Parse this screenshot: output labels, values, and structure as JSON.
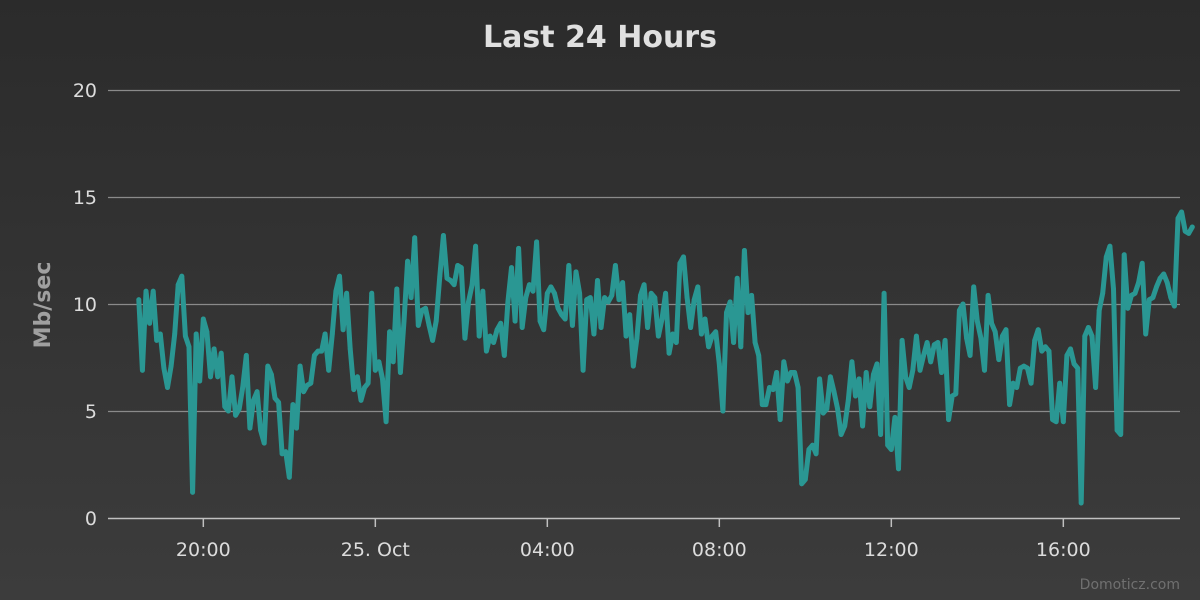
{
  "chart_data": {
    "type": "line",
    "title": "Last 24 Hours",
    "ylabel": "Mb/sec",
    "xlabel": "",
    "ylim": [
      0,
      20
    ],
    "y_ticks": [
      0,
      5,
      10,
      15,
      20
    ],
    "x_ticks": [
      "20:00",
      "25. Oct",
      "04:00",
      "08:00",
      "12:00",
      "16:00"
    ],
    "x_start": "24. Oct 18:30",
    "x_end": "25. Oct 18:25",
    "x_step_minutes": 5,
    "grid": true,
    "legend": "none",
    "series_color": "#2a9793",
    "series": [
      {
        "values": [
          10.2,
          6.9,
          10.6,
          9.1,
          10.6,
          8.3,
          8.6,
          7.0,
          6.1,
          7.1,
          8.6,
          10.9,
          11.3,
          8.5,
          8.0,
          1.2,
          8.6,
          6.4,
          9.3,
          8.7,
          6.6,
          7.9,
          6.6,
          7.7,
          5.2,
          5.0,
          6.6,
          4.8,
          5.1,
          6.1,
          7.6,
          4.2,
          5.5,
          5.9,
          4.1,
          3.5,
          7.1,
          6.7,
          5.6,
          5.4,
          3.0,
          3.1,
          1.9,
          5.3,
          4.2,
          7.1,
          5.9,
          6.2,
          6.3,
          7.6,
          7.8,
          7.8,
          8.6,
          6.9,
          8.6,
          10.6,
          11.3,
          8.8,
          10.5,
          7.9,
          6.0,
          6.6,
          5.5,
          6.1,
          6.3,
          10.5,
          6.9,
          7.3,
          6.5,
          4.5,
          8.7,
          7.3,
          10.7,
          6.8,
          9.2,
          12.0,
          10.3,
          13.1,
          9.0,
          9.7,
          9.8,
          9.0,
          8.3,
          9.2,
          11.3,
          13.2,
          11.2,
          11.1,
          10.9,
          11.8,
          11.7,
          8.4,
          10.1,
          10.9,
          12.7,
          8.5,
          10.6,
          7.8,
          8.5,
          8.2,
          8.8,
          9.1,
          7.6,
          10.1,
          11.7,
          9.2,
          12.6,
          8.9,
          10.3,
          10.9,
          10.6,
          12.9,
          9.2,
          8.8,
          10.5,
          10.8,
          10.5,
          9.8,
          9.5,
          9.3,
          11.8,
          9.0,
          11.5,
          10.5,
          6.9,
          10.2,
          10.3,
          8.6,
          11.1,
          8.9,
          10.3,
          10.1,
          10.4,
          11.8,
          10.2,
          11.0,
          8.5,
          9.5,
          7.1,
          8.4,
          10.4,
          10.9,
          8.9,
          10.5,
          10.3,
          8.5,
          9.3,
          10.5,
          7.7,
          8.6,
          8.2,
          11.9,
          12.2,
          10.3,
          8.9,
          10.2,
          10.8,
          8.6,
          9.3,
          8.0,
          8.5,
          8.7,
          7.2,
          5.0,
          9.6,
          10.1,
          8.2,
          11.2,
          8.0,
          12.5,
          9.6,
          10.4,
          8.2,
          7.6,
          5.3,
          5.3,
          6.1,
          6.0,
          6.8,
          4.6,
          7.3,
          6.4,
          6.8,
          6.8,
          6.1,
          1.6,
          1.8,
          3.2,
          3.4,
          3.0,
          6.5,
          4.9,
          5.1,
          6.6,
          5.9,
          5.1,
          3.9,
          4.3,
          5.5,
          7.3,
          5.7,
          6.5,
          4.3,
          6.8,
          5.2,
          6.7,
          7.2,
          3.9,
          10.5,
          3.4,
          3.2,
          4.7,
          2.3,
          8.3,
          6.6,
          6.1,
          6.9,
          8.5,
          6.9,
          7.6,
          8.2,
          7.3,
          8.1,
          8.2,
          6.8,
          8.3,
          4.6,
          5.7,
          5.8,
          9.7,
          10.0,
          8.4,
          7.6,
          10.8,
          9.2,
          8.4,
          6.9,
          10.4,
          9.1,
          8.7,
          7.4,
          8.5,
          8.8,
          5.3,
          6.3,
          6.1,
          7.0,
          7.1,
          7.0,
          6.3,
          8.3,
          8.8,
          7.8,
          8.0,
          7.8,
          4.6,
          4.5,
          6.3,
          4.5,
          7.6,
          7.9,
          7.2,
          7.0,
          0.7,
          8.5,
          8.9,
          8.5,
          6.1,
          9.7,
          10.5,
          12.2,
          12.7,
          10.7,
          4.1,
          3.9,
          12.3,
          9.8,
          10.4,
          10.5,
          11.0,
          11.9,
          8.6,
          10.2,
          10.3,
          10.8,
          11.2,
          11.4,
          11.0,
          10.3,
          9.9,
          14.0,
          14.3,
          13.4,
          13.3,
          13.6
        ]
      }
    ]
  },
  "watermark": "Domoticz.com"
}
